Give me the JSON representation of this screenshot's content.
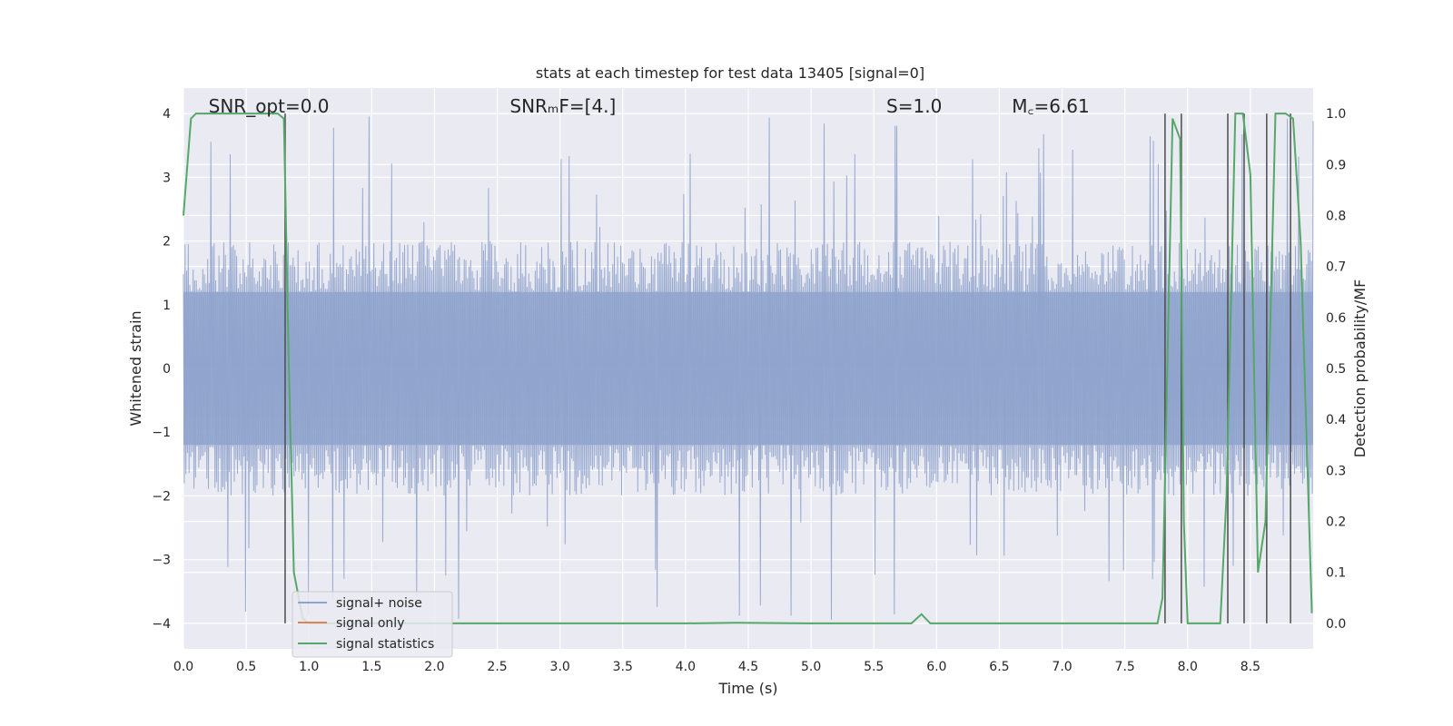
{
  "chart_data": {
    "type": "line",
    "title": "stats at each timestep for test data 13405 [signal=0]",
    "xlabel": "Time (s)",
    "ylabel_left": "Whitened strain",
    "ylabel_right": "Detection probability/MF",
    "xlim": [
      0.0,
      9.0
    ],
    "ylim_left": [
      -4.4,
      4.4
    ],
    "ylim_right": [
      -0.05,
      1.05
    ],
    "x_ticks": [
      "0.0",
      "0.5",
      "1.0",
      "1.5",
      "2.0",
      "2.5",
      "3.0",
      "3.5",
      "4.0",
      "4.5",
      "5.0",
      "5.5",
      "6.0",
      "6.5",
      "7.0",
      "7.5",
      "8.0",
      "8.5"
    ],
    "x_tick_values": [
      0.0,
      0.5,
      1.0,
      1.5,
      2.0,
      2.5,
      3.0,
      3.5,
      4.0,
      4.5,
      5.0,
      5.5,
      6.0,
      6.5,
      7.0,
      7.5,
      8.0,
      8.5
    ],
    "y_left_ticks": [
      "4",
      "3",
      "2",
      "1",
      "0",
      "−1",
      "−2",
      "−3",
      "−4"
    ],
    "y_left_tick_values": [
      4,
      3,
      2,
      1,
      0,
      -1,
      -2,
      -3,
      -4
    ],
    "y_right_ticks": [
      "1.0",
      "0.9",
      "0.8",
      "0.7",
      "0.6",
      "0.5",
      "0.4",
      "0.3",
      "0.2",
      "0.1",
      "0.0"
    ],
    "y_right_tick_values": [
      1.0,
      0.9,
      0.8,
      0.7,
      0.6,
      0.5,
      0.4,
      0.3,
      0.2,
      0.1,
      0.0
    ],
    "grid": true,
    "legend_position": "lower-left",
    "annotations": [
      {
        "text": "SNR_opt=0.0",
        "x": 0.2,
        "y": 4.1
      },
      {
        "text": "SNRₘF=[4.]",
        "x": 2.6,
        "y": 4.1
      },
      {
        "text": "S=1.0",
        "x": 5.6,
        "y": 4.1
      },
      {
        "text": "M꜀=6.61",
        "x": 6.6,
        "y": 4.1
      }
    ],
    "series": [
      {
        "name": "signal+ noise",
        "color": "#8fa3cc",
        "style": "noise band",
        "amplitude_typical": 1.6,
        "amplitude_max": 4.0
      },
      {
        "name": "signal only",
        "color": "#dd8452",
        "values": []
      },
      {
        "name": "signal statistics",
        "color": "#55a868",
        "x": [
          0.0,
          0.06,
          0.1,
          0.2,
          0.4,
          0.6,
          0.75,
          0.8,
          0.84,
          0.88,
          0.95,
          1.0,
          2.0,
          3.0,
          4.0,
          4.4,
          5.0,
          5.8,
          5.88,
          5.95,
          6.0,
          7.0,
          7.76,
          7.8,
          7.88,
          7.94,
          7.97,
          8.0,
          8.26,
          8.31,
          8.38,
          8.44,
          8.5,
          8.56,
          8.62,
          8.7,
          8.78,
          8.84,
          8.9,
          8.99
        ],
        "y": [
          0.8,
          0.99,
          1.0,
          1.0,
          1.0,
          1.0,
          1.0,
          0.99,
          0.5,
          0.1,
          0.01,
          0.0,
          0.0,
          0.0,
          0.0,
          0.001,
          0.0,
          0.0,
          0.018,
          0.0,
          0.0,
          0.0,
          0.0,
          0.05,
          0.99,
          0.95,
          0.2,
          0.0,
          0.0,
          0.25,
          1.0,
          1.0,
          0.88,
          0.1,
          0.2,
          1.0,
          1.0,
          0.99,
          0.75,
          0.02
        ]
      }
    ],
    "vlines": {
      "color": "#4c4c4c",
      "x": [
        0.81,
        7.82,
        7.95,
        8.32,
        8.45,
        8.63,
        8.82
      ],
      "ymin": -4.0,
      "ymax": 4.0
    }
  }
}
